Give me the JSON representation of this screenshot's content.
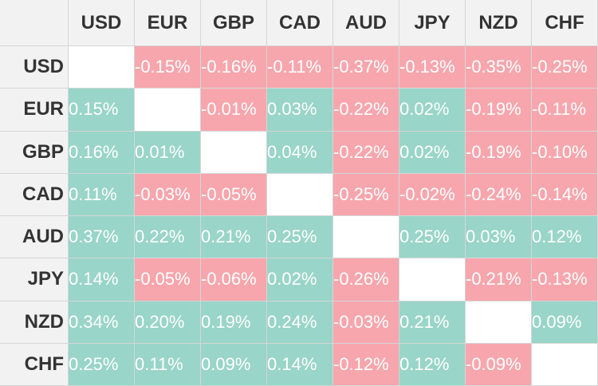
{
  "currencies": [
    "USD",
    "EUR",
    "GBP",
    "CAD",
    "AUD",
    "JPY",
    "NZD",
    "CHF"
  ],
  "matrix": [
    [
      "",
      "-0.15%",
      "-0.16%",
      "-0.11%",
      "-0.37%",
      "-0.13%",
      "-0.35%",
      "-0.25%"
    ],
    [
      "0.15%",
      "",
      "-0.01%",
      "0.03%",
      "-0.22%",
      "0.02%",
      "-0.19%",
      "-0.11%"
    ],
    [
      "0.16%",
      "0.01%",
      "",
      "0.04%",
      "-0.22%",
      "0.02%",
      "-0.19%",
      "-0.10%"
    ],
    [
      "0.11%",
      "-0.03%",
      "-0.05%",
      "",
      "-0.25%",
      "-0.02%",
      "-0.24%",
      "-0.14%"
    ],
    [
      "0.37%",
      "0.22%",
      "0.21%",
      "0.25%",
      "",
      "0.25%",
      "0.03%",
      "0.12%"
    ],
    [
      "0.14%",
      "-0.05%",
      "-0.06%",
      "0.02%",
      "-0.26%",
      "",
      "-0.21%",
      "-0.13%"
    ],
    [
      "0.34%",
      "0.20%",
      "0.19%",
      "0.24%",
      "-0.03%",
      "0.21%",
      "",
      "0.09%"
    ],
    [
      "0.25%",
      "0.11%",
      "0.09%",
      "0.14%",
      "-0.12%",
      "0.12%",
      "-0.09%",
      ""
    ]
  ],
  "colors": {
    "positive": "#99d5c8",
    "negative": "#f7a6ad",
    "empty": "#ffffff",
    "header": "#f2f2f2"
  }
}
